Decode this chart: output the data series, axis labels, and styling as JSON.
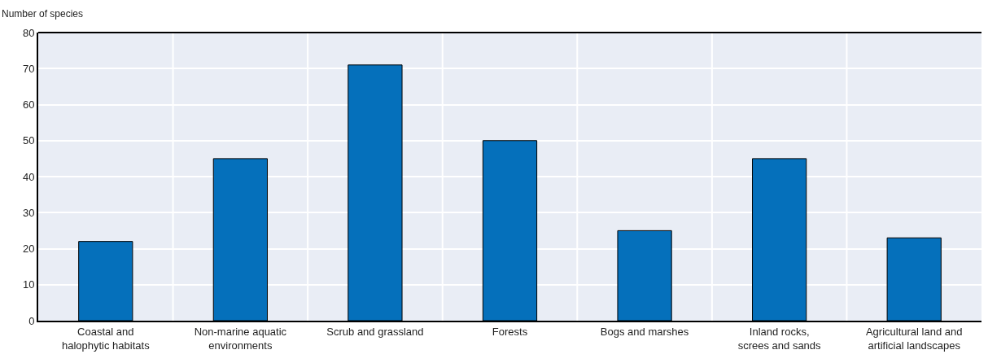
{
  "chart_data": {
    "type": "bar",
    "ylabel": "Number of species",
    "categories": [
      "Coastal and\nhalophytic habitats",
      "Non-marine aquatic\nenvironments",
      "Scrub and grassland",
      "Forests",
      "Bogs and marshes",
      "Inland rocks,\nscrees and sands",
      "Agricultural land and\nartificial landscapes"
    ],
    "values": [
      22,
      45,
      71,
      50,
      25,
      45,
      23
    ],
    "color": "#0570bb",
    "ylim": [
      0,
      80
    ],
    "yticks": [
      0,
      10,
      20,
      30,
      40,
      50,
      60,
      70,
      80
    ],
    "grid": true
  }
}
